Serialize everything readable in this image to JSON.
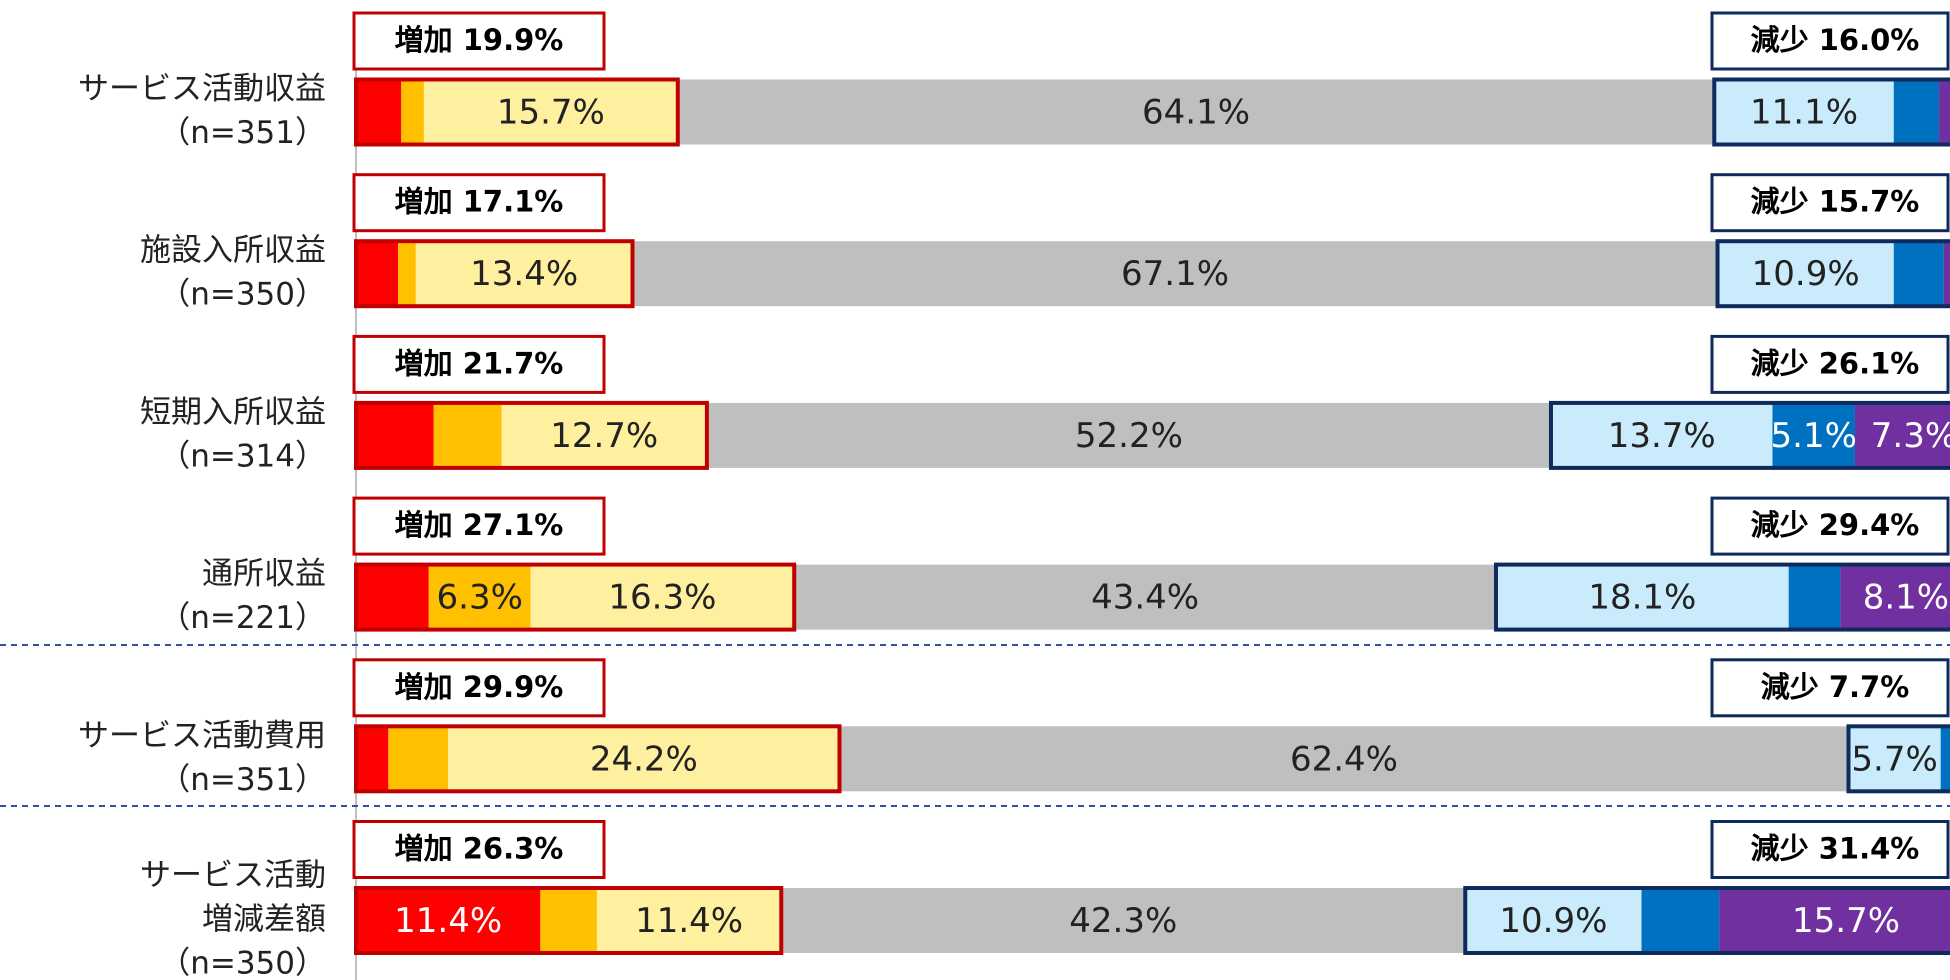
{
  "chart_data": {
    "type": "stacked_bar",
    "categories": [
      [
        "サービス活動収益",
        "（n=351）"
      ],
      [
        "施設入所収益",
        "（n=350）"
      ],
      [
        "短期入所収益",
        "（n=314）"
      ],
      [
        "通所収益",
        "（n=221）"
      ],
      [
        "サービス活動費用",
        "（n=351）"
      ],
      [
        "サービス活動",
        "増減差額",
        "（n=350）"
      ]
    ],
    "increase_labels": [
      "増加 19.9%",
      "増加 17.1%",
      "増加 21.7%",
      "増加 27.1%",
      "増加 29.9%",
      "増加 26.3%"
    ],
    "decrease_labels": [
      "減少 16.0%",
      "減少 15.7%",
      "減少 26.1%",
      "減少 29.4%",
      "減少 7.7%",
      "減少 31.4%"
    ],
    "xlim": [
      0,
      100
    ],
    "series": [
      {
        "color": "#ff0000",
        "values": [
          2.8,
          2.6,
          4.8,
          4.5,
          2.0,
          11.4
        ],
        "value_labels": [
          null,
          null,
          null,
          null,
          null,
          "11.4%"
        ]
      },
      {
        "color": "#ffc000",
        "values": [
          1.4,
          1.1,
          4.2,
          6.3,
          3.7,
          3.5
        ],
        "value_labels": [
          null,
          null,
          null,
          "6.3%",
          null,
          null
        ]
      },
      {
        "color": "#fff0a0",
        "values": [
          15.7,
          13.4,
          12.7,
          16.3,
          24.2,
          11.4
        ],
        "value_labels": [
          "15.7%",
          "13.4%",
          "12.7%",
          "16.3%",
          "24.2%",
          "11.4%"
        ]
      },
      {
        "color": "#bfbfbf",
        "values": [
          64.1,
          67.1,
          52.2,
          43.4,
          62.4,
          42.3
        ],
        "value_labels": [
          "64.1%",
          "67.1%",
          "52.2%",
          "43.4%",
          "62.4%",
          "42.3%"
        ]
      },
      {
        "color": "#c9ebfb",
        "values": [
          11.1,
          10.9,
          13.7,
          18.1,
          5.7,
          10.9
        ],
        "value_labels": [
          "11.1%",
          "10.9%",
          "13.7%",
          "18.1%",
          "5.7%",
          "10.9%"
        ]
      },
      {
        "color": "#0070c0",
        "values": [
          2.8,
          3.1,
          5.1,
          3.2,
          1.5,
          4.8
        ],
        "value_labels": [
          null,
          null,
          "5.1%",
          null,
          null,
          null
        ]
      },
      {
        "color": "#7030a0",
        "values": [
          2.1,
          1.7,
          7.3,
          8.1,
          0.5,
          15.7
        ],
        "value_labels": [
          null,
          null,
          "7.3%",
          "8.1%",
          null,
          "15.7%"
        ]
      }
    ]
  }
}
